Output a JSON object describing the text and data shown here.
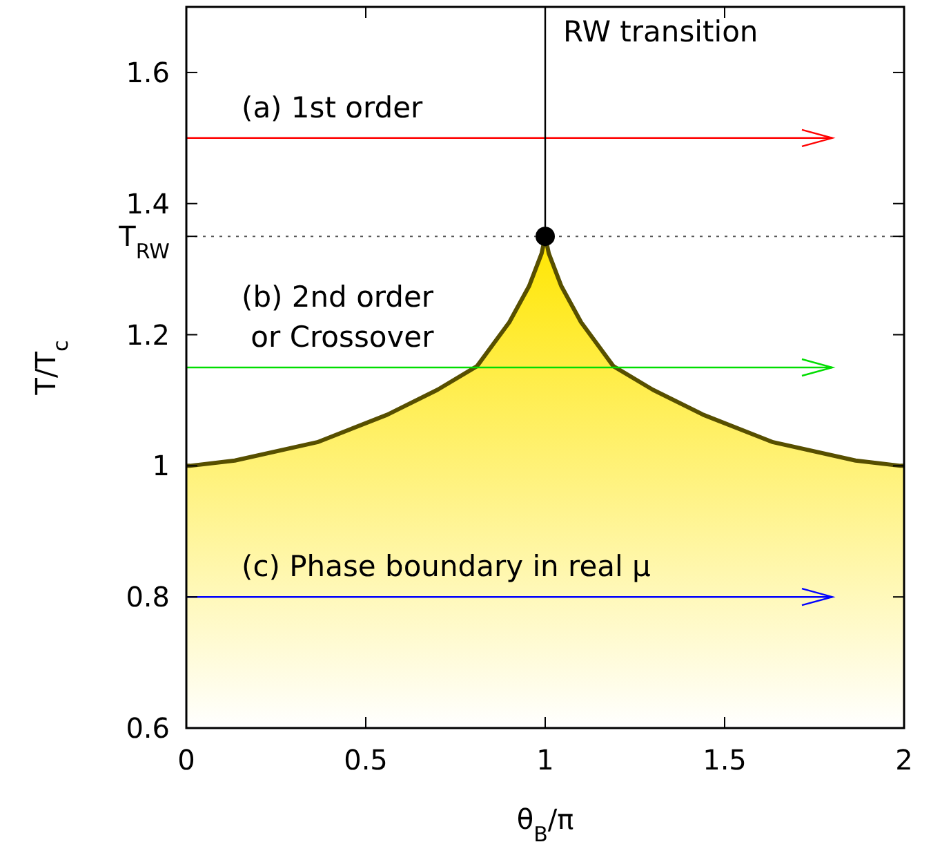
{
  "chart_data": {
    "type": "line",
    "xlabel": "θ$_{B}$/π",
    "ylabel": "T/T$_{c}$",
    "xlim": [
      0,
      2
    ],
    "xticks": [
      0,
      0.5,
      1,
      1.5,
      2
    ],
    "ylim": [
      0.6,
      1.7
    ],
    "yticks": [
      0.6,
      0.8,
      1,
      1.2,
      {
        "value": 1.35,
        "label": "T$_{RW}$"
      },
      1.4,
      1.6
    ],
    "series": [
      {
        "type": "area",
        "color": "#ffe600",
        "x": [
          0,
          0.01,
          0.135,
          0.365,
          0.56,
          0.7,
          0.81,
          0.9,
          0.955,
          0.99,
          1,
          1.01,
          1.045,
          1.1,
          1.19,
          1.3,
          1.44,
          1.635,
          1.865,
          1.99,
          2
        ],
        "values": [
          1.0,
          1.0,
          1.008,
          1.036,
          1.078,
          1.116,
          1.152,
          1.219,
          1.274,
          1.324,
          1.35,
          1.324,
          1.274,
          1.219,
          1.152,
          1.116,
          1.078,
          1.036,
          1.008,
          1.0,
          1.0
        ]
      },
      {
        "color": "#000000",
        "x": [
          1,
          1
        ],
        "values": [
          1.35,
          1.7
        ]
      },
      {
        "type": "scatter",
        "color": "#000000",
        "x": [
          1
        ],
        "values": [
          1.35
        ],
        "marker": "circle"
      }
    ],
    "ref_lines": [
      {
        "axis": "y",
        "value": 1.35,
        "color": "#555555",
        "line_style": "dotted"
      },
      {
        "axis": "y",
        "value": 1.5,
        "color": "#ff0000",
        "label": "(a) 1st order"
      },
      {
        "axis": "y",
        "value": 1.15,
        "color": "#00dd00",
        "label": "(b) 2nd order\n or Crossover"
      },
      {
        "axis": "y",
        "value": 0.8,
        "color": "#0000ff",
        "label": "(c) Phase boundary in real μ"
      }
    ],
    "annotations": [
      "RW transition"
    ]
  }
}
